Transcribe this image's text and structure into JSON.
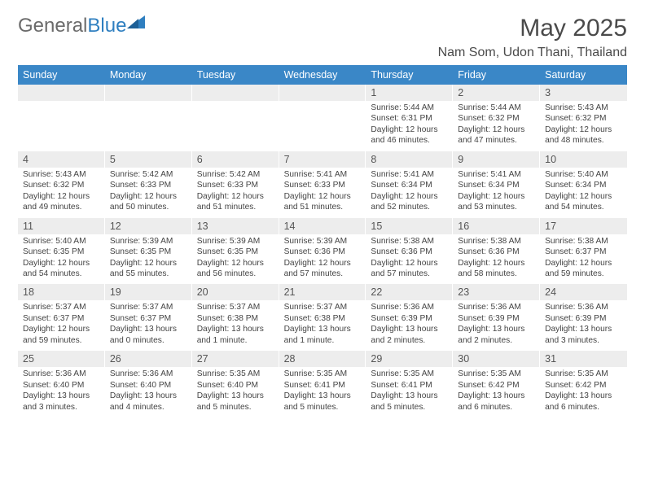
{
  "logo": {
    "general": "General",
    "blue": "Blue"
  },
  "title": "May 2025",
  "location": "Nam Som, Udon Thani, Thailand",
  "colors": {
    "header_bg": "#3a87c7",
    "header_text": "#ffffff",
    "daynum_bg": "#ededed",
    "page_bg": "#ffffff",
    "text": "#444444",
    "logo_gray": "#6b6b6b",
    "logo_blue": "#2f7fc0"
  },
  "dow": [
    "Sunday",
    "Monday",
    "Tuesday",
    "Wednesday",
    "Thursday",
    "Friday",
    "Saturday"
  ],
  "weeks": [
    [
      {
        "n": "",
        "sr": "",
        "ss": "",
        "dl": ""
      },
      {
        "n": "",
        "sr": "",
        "ss": "",
        "dl": ""
      },
      {
        "n": "",
        "sr": "",
        "ss": "",
        "dl": ""
      },
      {
        "n": "",
        "sr": "",
        "ss": "",
        "dl": ""
      },
      {
        "n": "1",
        "sr": "Sunrise: 5:44 AM",
        "ss": "Sunset: 6:31 PM",
        "dl": "Daylight: 12 hours and 46 minutes."
      },
      {
        "n": "2",
        "sr": "Sunrise: 5:44 AM",
        "ss": "Sunset: 6:32 PM",
        "dl": "Daylight: 12 hours and 47 minutes."
      },
      {
        "n": "3",
        "sr": "Sunrise: 5:43 AM",
        "ss": "Sunset: 6:32 PM",
        "dl": "Daylight: 12 hours and 48 minutes."
      }
    ],
    [
      {
        "n": "4",
        "sr": "Sunrise: 5:43 AM",
        "ss": "Sunset: 6:32 PM",
        "dl": "Daylight: 12 hours and 49 minutes."
      },
      {
        "n": "5",
        "sr": "Sunrise: 5:42 AM",
        "ss": "Sunset: 6:33 PM",
        "dl": "Daylight: 12 hours and 50 minutes."
      },
      {
        "n": "6",
        "sr": "Sunrise: 5:42 AM",
        "ss": "Sunset: 6:33 PM",
        "dl": "Daylight: 12 hours and 51 minutes."
      },
      {
        "n": "7",
        "sr": "Sunrise: 5:41 AM",
        "ss": "Sunset: 6:33 PM",
        "dl": "Daylight: 12 hours and 51 minutes."
      },
      {
        "n": "8",
        "sr": "Sunrise: 5:41 AM",
        "ss": "Sunset: 6:34 PM",
        "dl": "Daylight: 12 hours and 52 minutes."
      },
      {
        "n": "9",
        "sr": "Sunrise: 5:41 AM",
        "ss": "Sunset: 6:34 PM",
        "dl": "Daylight: 12 hours and 53 minutes."
      },
      {
        "n": "10",
        "sr": "Sunrise: 5:40 AM",
        "ss": "Sunset: 6:34 PM",
        "dl": "Daylight: 12 hours and 54 minutes."
      }
    ],
    [
      {
        "n": "11",
        "sr": "Sunrise: 5:40 AM",
        "ss": "Sunset: 6:35 PM",
        "dl": "Daylight: 12 hours and 54 minutes."
      },
      {
        "n": "12",
        "sr": "Sunrise: 5:39 AM",
        "ss": "Sunset: 6:35 PM",
        "dl": "Daylight: 12 hours and 55 minutes."
      },
      {
        "n": "13",
        "sr": "Sunrise: 5:39 AM",
        "ss": "Sunset: 6:35 PM",
        "dl": "Daylight: 12 hours and 56 minutes."
      },
      {
        "n": "14",
        "sr": "Sunrise: 5:39 AM",
        "ss": "Sunset: 6:36 PM",
        "dl": "Daylight: 12 hours and 57 minutes."
      },
      {
        "n": "15",
        "sr": "Sunrise: 5:38 AM",
        "ss": "Sunset: 6:36 PM",
        "dl": "Daylight: 12 hours and 57 minutes."
      },
      {
        "n": "16",
        "sr": "Sunrise: 5:38 AM",
        "ss": "Sunset: 6:36 PM",
        "dl": "Daylight: 12 hours and 58 minutes."
      },
      {
        "n": "17",
        "sr": "Sunrise: 5:38 AM",
        "ss": "Sunset: 6:37 PM",
        "dl": "Daylight: 12 hours and 59 minutes."
      }
    ],
    [
      {
        "n": "18",
        "sr": "Sunrise: 5:37 AM",
        "ss": "Sunset: 6:37 PM",
        "dl": "Daylight: 12 hours and 59 minutes."
      },
      {
        "n": "19",
        "sr": "Sunrise: 5:37 AM",
        "ss": "Sunset: 6:37 PM",
        "dl": "Daylight: 13 hours and 0 minutes."
      },
      {
        "n": "20",
        "sr": "Sunrise: 5:37 AM",
        "ss": "Sunset: 6:38 PM",
        "dl": "Daylight: 13 hours and 1 minute."
      },
      {
        "n": "21",
        "sr": "Sunrise: 5:37 AM",
        "ss": "Sunset: 6:38 PM",
        "dl": "Daylight: 13 hours and 1 minute."
      },
      {
        "n": "22",
        "sr": "Sunrise: 5:36 AM",
        "ss": "Sunset: 6:39 PM",
        "dl": "Daylight: 13 hours and 2 minutes."
      },
      {
        "n": "23",
        "sr": "Sunrise: 5:36 AM",
        "ss": "Sunset: 6:39 PM",
        "dl": "Daylight: 13 hours and 2 minutes."
      },
      {
        "n": "24",
        "sr": "Sunrise: 5:36 AM",
        "ss": "Sunset: 6:39 PM",
        "dl": "Daylight: 13 hours and 3 minutes."
      }
    ],
    [
      {
        "n": "25",
        "sr": "Sunrise: 5:36 AM",
        "ss": "Sunset: 6:40 PM",
        "dl": "Daylight: 13 hours and 3 minutes."
      },
      {
        "n": "26",
        "sr": "Sunrise: 5:36 AM",
        "ss": "Sunset: 6:40 PM",
        "dl": "Daylight: 13 hours and 4 minutes."
      },
      {
        "n": "27",
        "sr": "Sunrise: 5:35 AM",
        "ss": "Sunset: 6:40 PM",
        "dl": "Daylight: 13 hours and 5 minutes."
      },
      {
        "n": "28",
        "sr": "Sunrise: 5:35 AM",
        "ss": "Sunset: 6:41 PM",
        "dl": "Daylight: 13 hours and 5 minutes."
      },
      {
        "n": "29",
        "sr": "Sunrise: 5:35 AM",
        "ss": "Sunset: 6:41 PM",
        "dl": "Daylight: 13 hours and 5 minutes."
      },
      {
        "n": "30",
        "sr": "Sunrise: 5:35 AM",
        "ss": "Sunset: 6:42 PM",
        "dl": "Daylight: 13 hours and 6 minutes."
      },
      {
        "n": "31",
        "sr": "Sunrise: 5:35 AM",
        "ss": "Sunset: 6:42 PM",
        "dl": "Daylight: 13 hours and 6 minutes."
      }
    ]
  ]
}
